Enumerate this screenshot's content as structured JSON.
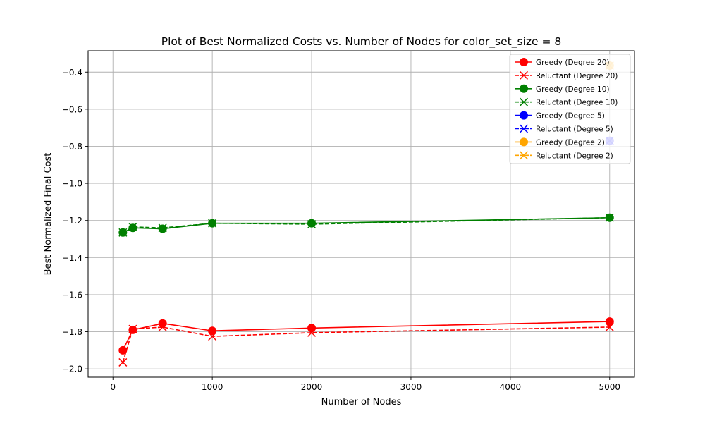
{
  "chart_data": {
    "type": "line",
    "title": "Plot of Best Normalized Costs vs. Number of Nodes for color_set_size = 8",
    "xlabel": "Number of Nodes",
    "ylabel": "Best Normalized Final Cost",
    "xlim": [
      -250,
      5250
    ],
    "ylim": [
      -2.045,
      -0.285
    ],
    "xticks": [
      0,
      1000,
      2000,
      3000,
      4000,
      5000
    ],
    "xtick_labels": [
      "0",
      "1000",
      "2000",
      "3000",
      "4000",
      "5000"
    ],
    "yticks": [
      -2.0,
      -1.8,
      -1.6,
      -1.4,
      -1.2,
      -1.0,
      -0.8,
      -0.6,
      -0.4
    ],
    "ytick_labels": [
      "−2.0",
      "−1.8",
      "−1.6",
      "−1.4",
      "−1.2",
      "−1.0",
      "−0.8",
      "−0.6",
      "−0.4"
    ],
    "grid": true,
    "legend_position": "top-right",
    "series": [
      {
        "name": "Greedy (Degree 20)",
        "color": "#ff0000",
        "style": "solid",
        "marker": "circle",
        "x": [
          100,
          200,
          500,
          1000,
          2000,
          5000
        ],
        "y": [
          -1.9,
          -1.79,
          -1.755,
          -1.795,
          -1.78,
          -1.745
        ]
      },
      {
        "name": "Reluctant (Degree 20)",
        "color": "#ff0000",
        "style": "dashed",
        "marker": "x",
        "x": [
          100,
          200,
          500,
          1000,
          2000,
          5000
        ],
        "y": [
          -1.965,
          -1.785,
          -1.775,
          -1.825,
          -1.805,
          -1.775
        ]
      },
      {
        "name": "Greedy (Degree 10)",
        "color": "#008000",
        "style": "solid",
        "marker": "circle",
        "x": [
          100,
          200,
          500,
          1000,
          2000,
          5000
        ],
        "y": [
          -1.265,
          -1.24,
          -1.245,
          -1.215,
          -1.215,
          -1.185
        ]
      },
      {
        "name": "Reluctant (Degree 10)",
        "color": "#008000",
        "style": "dashed",
        "marker": "x",
        "x": [
          100,
          200,
          500,
          1000,
          2000,
          5000
        ],
        "y": [
          -1.265,
          -1.235,
          -1.24,
          -1.215,
          -1.22,
          -1.185
        ]
      },
      {
        "name": "Greedy (Degree 5)",
        "color": "#0000ff",
        "style": "solid",
        "marker": "circle",
        "x": [
          5000
        ],
        "y": [
          -0.77
        ]
      },
      {
        "name": "Reluctant (Degree 5)",
        "color": "#0000ff",
        "style": "dashed",
        "marker": "x",
        "x": [
          5000
        ],
        "y": [
          -0.77
        ]
      },
      {
        "name": "Greedy (Degree 2)",
        "color": "#ffa500",
        "style": "solid",
        "marker": "circle",
        "x": [
          5000
        ],
        "y": [
          -0.365
        ]
      },
      {
        "name": "Reluctant (Degree 2)",
        "color": "#ffa500",
        "style": "dashed",
        "marker": "x",
        "x": [
          5000
        ],
        "y": [
          -0.365
        ]
      }
    ]
  }
}
